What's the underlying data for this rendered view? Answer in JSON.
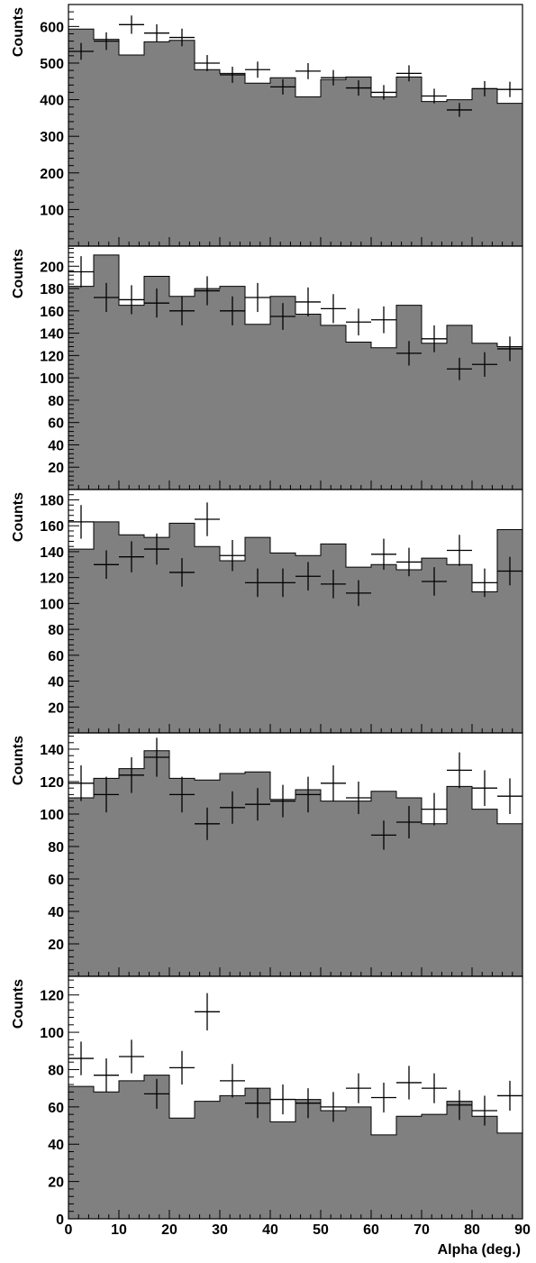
{
  "bin_width": 5,
  "x_axis": {
    "label": "Alpha (deg.)",
    "range": [
      0,
      90
    ],
    "ticks": [
      0,
      10,
      20,
      30,
      40,
      50,
      60,
      70,
      80,
      90
    ],
    "tick_labels": [
      "0",
      "10",
      "20",
      "30",
      "40",
      "50",
      "60",
      "70",
      "80",
      "90"
    ]
  },
  "chart_data": [
    {
      "type": "histogram",
      "ylabel": "Counts",
      "ylim": [
        0,
        660
      ],
      "yticks": [
        100,
        200,
        300,
        400,
        500,
        600
      ],
      "ytick_labels": [
        "100",
        "200",
        "300",
        "400",
        "500",
        "600"
      ],
      "histogram_fill": "#808080",
      "histogram": [
        593,
        565,
        522,
        558,
        562,
        482,
        472,
        445,
        460,
        408,
        455,
        462,
        408,
        462,
        395,
        400,
        430,
        390
      ],
      "points": [
        532,
        560,
        605,
        582,
        570,
        500,
        468,
        482,
        435,
        478,
        460,
        432,
        420,
        472,
        410,
        372,
        430,
        428
      ],
      "errors": [
        23,
        24,
        25,
        24,
        24,
        22,
        22,
        22,
        21,
        22,
        21,
        21,
        20,
        22,
        20,
        19,
        21,
        21
      ]
    },
    {
      "type": "histogram",
      "ylabel": "Counts",
      "ylim": [
        0,
        218
      ],
      "yticks": [
        20,
        40,
        60,
        80,
        100,
        120,
        140,
        160,
        180,
        200
      ],
      "ytick_labels": [
        "20",
        "40",
        "60",
        "80",
        "100",
        "120",
        "140",
        "160",
        "180",
        "200"
      ],
      "histogram_fill": "#808080",
      "histogram": [
        182,
        210,
        165,
        191,
        173,
        180,
        182,
        148,
        173,
        157,
        147,
        132,
        127,
        165,
        131,
        147,
        131,
        128
      ],
      "points": [
        195,
        172,
        170,
        167,
        160,
        178,
        160,
        172,
        155,
        168,
        162,
        150,
        152,
        122,
        135,
        108,
        112,
        126
      ],
      "errors": [
        14,
        13,
        13,
        13,
        13,
        13,
        13,
        13,
        12,
        13,
        13,
        12,
        12,
        11,
        12,
        10,
        11,
        11
      ]
    },
    {
      "type": "histogram",
      "ylabel": "Counts",
      "ylim": [
        0,
        188
      ],
      "yticks": [
        20,
        40,
        60,
        80,
        100,
        120,
        140,
        160,
        180
      ],
      "ytick_labels": [
        "20",
        "40",
        "60",
        "80",
        "100",
        "120",
        "140",
        "160",
        "180"
      ],
      "histogram_fill": "#808080",
      "histogram": [
        142,
        163,
        153,
        151,
        162,
        144,
        133,
        151,
        139,
        137,
        146,
        128,
        130,
        126,
        135,
        130,
        109,
        157
      ],
      "points": [
        163,
        130,
        136,
        142,
        124,
        165,
        137,
        116,
        116,
        121,
        115,
        108,
        138,
        132,
        117,
        141,
        116,
        125
      ],
      "errors": [
        13,
        11,
        12,
        12,
        11,
        13,
        12,
        11,
        11,
        11,
        11,
        10,
        12,
        11,
        11,
        12,
        11,
        11
      ]
    },
    {
      "type": "histogram",
      "ylabel": "Counts",
      "ylim": [
        0,
        150
      ],
      "yticks": [
        20,
        40,
        60,
        80,
        100,
        120,
        140
      ],
      "ytick_labels": [
        "20",
        "40",
        "60",
        "80",
        "100",
        "120",
        "140"
      ],
      "histogram_fill": "#808080",
      "histogram": [
        110,
        122,
        128,
        139,
        122,
        121,
        125,
        126,
        109,
        115,
        108,
        108,
        114,
        110,
        94,
        117,
        103,
        94
      ],
      "points": [
        119,
        112,
        124,
        135,
        112,
        94,
        104,
        106,
        108,
        112,
        119,
        110,
        87,
        95,
        103,
        127,
        116,
        111
      ],
      "errors": [
        11,
        11,
        11,
        12,
        11,
        10,
        10,
        10,
        10,
        11,
        11,
        10,
        9,
        10,
        10,
        11,
        11,
        11
      ]
    },
    {
      "type": "histogram",
      "ylabel": "Counts",
      "ylim": [
        0,
        130
      ],
      "yticks": [
        0,
        20,
        40,
        60,
        80,
        100,
        120
      ],
      "ytick_labels": [
        "0",
        "20",
        "40",
        "60",
        "80",
        "100",
        "120"
      ],
      "histogram_fill": "#808080",
      "histogram": [
        71,
        68,
        74,
        77,
        54,
        63,
        66,
        70,
        52,
        64,
        58,
        60,
        45,
        55,
        56,
        63,
        55,
        46
      ],
      "points": [
        86,
        77,
        87,
        67,
        81,
        111,
        74,
        62,
        64,
        62,
        60,
        70,
        65,
        73,
        70,
        61,
        58,
        66
      ],
      "errors": [
        9,
        9,
        9,
        8,
        9,
        10,
        9,
        8,
        8,
        8,
        8,
        8,
        8,
        9,
        8,
        8,
        8,
        8
      ]
    }
  ]
}
